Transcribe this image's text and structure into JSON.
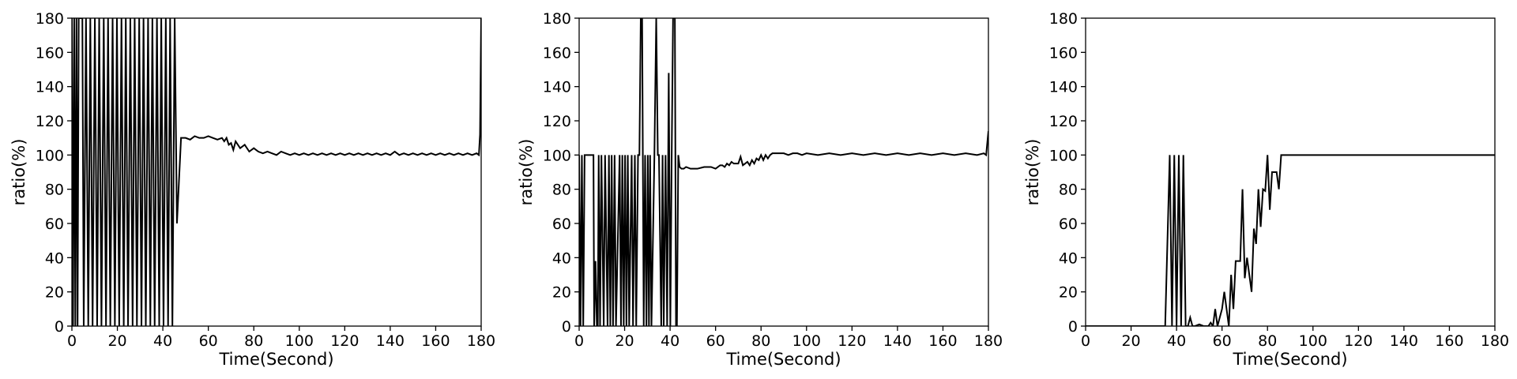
{
  "chart_data": [
    {
      "type": "line",
      "xlabel": "Time(Second)",
      "ylabel": "ratio(%)",
      "xlim": [
        0,
        180
      ],
      "ylim": [
        0,
        180
      ],
      "xticks": [
        0,
        20,
        40,
        60,
        80,
        100,
        120,
        140,
        160,
        180
      ],
      "yticks": [
        0,
        20,
        40,
        60,
        80,
        100,
        120,
        140,
        160,
        180
      ],
      "grid": false,
      "color": "#000000",
      "series": [
        {
          "x": [
            0,
            0.5,
            1,
            1.5,
            2,
            2.5,
            3,
            4.6,
            5.2,
            6.2,
            7.2,
            8.1,
            9.1,
            10.1,
            11.1,
            12,
            13,
            14,
            15,
            15.9,
            16.9,
            17.9,
            18.9,
            19.8,
            20.8,
            21.8,
            22.8,
            23.7,
            24.7,
            25.7,
            26.7,
            27.6,
            28.6,
            29.6,
            30.6,
            31.5,
            32.5,
            33.5,
            34.5,
            35.4,
            36.4,
            37.4,
            38.4,
            39.3,
            40.3,
            41.3,
            42.3,
            43.2,
            44.2,
            45.2,
            46.2,
            48,
            50,
            52,
            54,
            56,
            58,
            60,
            62,
            64,
            66,
            67,
            68,
            69,
            70,
            71,
            72,
            74,
            76,
            78,
            80,
            82,
            84,
            86,
            88,
            90,
            92,
            94,
            96,
            98,
            100,
            102,
            104,
            106,
            108,
            110,
            112,
            114,
            116,
            118,
            120,
            122,
            124,
            126,
            128,
            130,
            132,
            134,
            136,
            138,
            140,
            142,
            144,
            146,
            148,
            150,
            152,
            154,
            156,
            158,
            160,
            162,
            164,
            166,
            168,
            170,
            172,
            174,
            176,
            178,
            179,
            179.5,
            180
          ],
          "y": [
            180,
            0,
            180,
            0,
            180,
            0,
            180,
            180,
            0,
            180,
            0,
            180,
            0,
            180,
            0,
            180,
            0,
            180,
            0,
            180,
            0,
            180,
            0,
            180,
            0,
            180,
            0,
            180,
            0,
            180,
            0,
            180,
            0,
            180,
            0,
            180,
            0,
            180,
            0,
            180,
            0,
            180,
            0,
            180,
            0,
            180,
            0,
            180,
            0,
            180,
            60,
            110,
            110,
            109,
            111,
            110,
            110,
            111,
            110,
            109,
            110,
            108,
            110,
            106,
            107,
            103,
            108,
            104,
            106,
            102,
            104,
            102,
            101,
            102,
            101,
            100,
            102,
            101,
            100,
            101,
            100,
            101,
            100,
            101,
            100,
            101,
            100,
            101,
            100,
            101,
            100,
            101,
            100,
            101,
            100,
            101,
            100,
            101,
            100,
            101,
            100,
            102,
            100,
            101,
            100,
            101,
            100,
            101,
            100,
            101,
            100,
            101,
            100,
            101,
            100,
            101,
            100,
            101,
            100,
            101,
            100,
            112,
            180
          ]
        }
      ]
    },
    {
      "type": "line",
      "xlabel": "Time(Second)",
      "ylabel": "ratio(%)",
      "xlim": [
        0,
        180
      ],
      "ylim": [
        0,
        180
      ],
      "xticks": [
        0,
        20,
        40,
        60,
        80,
        100,
        120,
        140,
        160,
        180
      ],
      "yticks": [
        0,
        20,
        40,
        60,
        80,
        100,
        120,
        140,
        160,
        180
      ],
      "grid": false,
      "color": "#000000",
      "series": [
        {
          "x": [
            0,
            0.6,
            1.2,
            1.8,
            2.4,
            3,
            4.5,
            6.3,
            6.6,
            7.2,
            7.8,
            8.2,
            8.6,
            9.2,
            9.8,
            10.8,
            11.4,
            12.5,
            13.1,
            13.7,
            14.3,
            14.9,
            15.6,
            16.2,
            17.8,
            18.4,
            19,
            19.6,
            20.2,
            20.8,
            21.4,
            22,
            23.1,
            23.7,
            24.5,
            25.1,
            25.9,
            26.5,
            27.1,
            27.7,
            28.4,
            29,
            29.6,
            30.2,
            30.7,
            31.2,
            31.8,
            33.1,
            33.9,
            34.6,
            35.1,
            36.1,
            36.7,
            37.2,
            38,
            38.7,
            39.4,
            40.1,
            40.7,
            41.3,
            42.1,
            42.6,
            43,
            43.6,
            44.2,
            45,
            46,
            47,
            49,
            52,
            55,
            58,
            60,
            62,
            63,
            64,
            65,
            66,
            67,
            68,
            69,
            70,
            71,
            72,
            73,
            74,
            75,
            76,
            77,
            78,
            79,
            80,
            81,
            82,
            83,
            84,
            85,
            86,
            88,
            90,
            92,
            94,
            96,
            98,
            100,
            105,
            110,
            115,
            120,
            125,
            130,
            135,
            140,
            145,
            150,
            155,
            160,
            165,
            170,
            175,
            178,
            179,
            180
          ],
          "y": [
            100,
            0,
            100,
            0,
            100,
            100,
            100,
            100,
            0,
            38,
            0,
            0,
            100,
            0,
            100,
            0,
            100,
            0,
            100,
            0,
            100,
            0,
            100,
            0,
            100,
            0,
            100,
            0,
            100,
            0,
            100,
            0,
            100,
            0,
            100,
            0,
            100,
            100,
            180,
            180,
            0,
            100,
            0,
            100,
            0,
            100,
            0,
            100,
            180,
            100,
            100,
            0,
            100,
            0,
            100,
            0,
            148,
            0,
            100,
            180,
            180,
            0,
            0,
            100,
            93,
            92,
            92,
            93,
            92,
            92,
            93,
            93,
            92,
            94,
            94,
            93,
            95,
            94,
            96,
            95,
            95,
            95,
            99,
            94,
            95,
            96,
            94,
            97,
            95,
            98,
            97,
            100,
            97,
            100,
            98,
            100,
            101,
            101,
            101,
            101,
            100,
            101,
            101,
            100,
            101,
            100,
            101,
            100,
            101,
            100,
            101,
            100,
            101,
            100,
            101,
            100,
            101,
            100,
            101,
            100,
            101,
            100,
            114
          ]
        }
      ]
    },
    {
      "type": "line",
      "xlabel": "Time(Second)",
      "ylabel": "ratio(%)",
      "xlim": [
        0,
        180
      ],
      "ylim": [
        0,
        180
      ],
      "xticks": [
        0,
        20,
        40,
        60,
        80,
        100,
        120,
        140,
        160,
        180
      ],
      "yticks": [
        0,
        20,
        40,
        60,
        80,
        100,
        120,
        140,
        160,
        180
      ],
      "grid": false,
      "color": "#000000",
      "series": [
        {
          "x": [
            0,
            10,
            20,
            30,
            35,
            37,
            38,
            39,
            40,
            41,
            42,
            43,
            44,
            45,
            46,
            47,
            48,
            50,
            52,
            54,
            55,
            56,
            57,
            58,
            59,
            60,
            61,
            62,
            63,
            64,
            65,
            66,
            67,
            68,
            69,
            70,
            71,
            72,
            73,
            74,
            75,
            76,
            77,
            78,
            79,
            80,
            81,
            82,
            83,
            84,
            85,
            86,
            87,
            90,
            95,
            100,
            110,
            120,
            130,
            140,
            150,
            160,
            170,
            180
          ],
          "y": [
            0,
            0,
            0,
            0,
            0,
            100,
            0,
            100,
            0,
            100,
            0,
            100,
            0,
            0,
            5,
            0,
            0,
            1,
            0,
            0,
            2,
            0,
            10,
            0,
            5,
            10,
            20,
            10,
            0,
            30,
            10,
            38,
            38,
            38,
            80,
            28,
            40,
            30,
            20,
            57,
            48,
            80,
            58,
            80,
            79,
            100,
            68,
            90,
            90,
            90,
            80,
            100,
            100,
            100,
            100,
            100,
            100,
            100,
            100,
            100,
            100,
            100,
            100,
            100
          ]
        }
      ]
    }
  ]
}
